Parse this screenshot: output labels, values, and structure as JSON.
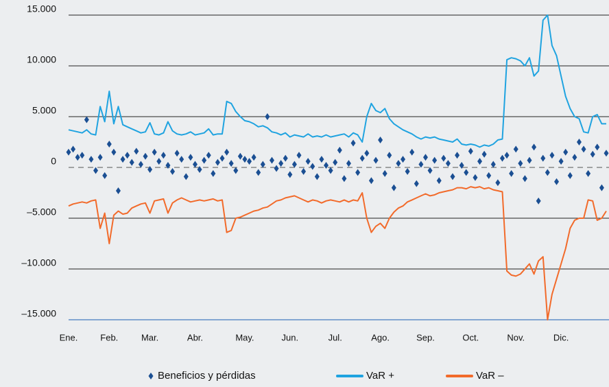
{
  "chart_data": {
    "type": "line",
    "categories": [
      "Ene.",
      null,
      null,
      null,
      null,
      null,
      null,
      null,
      null,
      "Feb.",
      null,
      null,
      null,
      null,
      null,
      null,
      null,
      null,
      "Mar.",
      null,
      null,
      null,
      null,
      null,
      null,
      null,
      null,
      null,
      "Abr.",
      null,
      null,
      null,
      null,
      null,
      null,
      null,
      null,
      null,
      null,
      "May.",
      null,
      null,
      null,
      null,
      null,
      null,
      null,
      null,
      null,
      "Jun.",
      null,
      null,
      null,
      null,
      null,
      null,
      null,
      null,
      null,
      "Jul.",
      null,
      null,
      null,
      null,
      null,
      null,
      null,
      null,
      null,
      "Ago.",
      null,
      null,
      null,
      null,
      null,
      null,
      null,
      null,
      null,
      "Sep.",
      null,
      null,
      null,
      null,
      null,
      null,
      null,
      null,
      null,
      "Oct.",
      null,
      null,
      null,
      null,
      null,
      null,
      null,
      null,
      null,
      "Nov.",
      null,
      null,
      null,
      null,
      null,
      null,
      null,
      null,
      null,
      "Dic.",
      null,
      null,
      null,
      null,
      null,
      null,
      null,
      null,
      null,
      null
    ],
    "series": [
      {
        "name": "Beneficios y pérdidas",
        "color": "#1b4f93",
        "mode": "markers",
        "values": [
          1500,
          1800,
          1000,
          1200,
          4700,
          800,
          -300,
          1000,
          -800,
          2300,
          1500,
          -2300,
          800,
          1200,
          500,
          1600,
          300,
          1100,
          -200,
          1500,
          600,
          1200,
          200,
          -400,
          1400,
          800,
          -900,
          1000,
          300,
          -200,
          700,
          1200,
          -600,
          500,
          900,
          1500,
          400,
          -300,
          1100,
          800,
          600,
          1000,
          -500,
          300,
          5000,
          700,
          -100,
          400,
          900,
          -700,
          300,
          1200,
          -400,
          600,
          100,
          -900,
          800,
          200,
          -300,
          500,
          1700,
          -1100,
          400,
          2400,
          -500,
          900,
          1400,
          -1300,
          700,
          2700,
          -600,
          1200,
          -2000,
          400,
          800,
          -400,
          1500,
          -1600,
          300,
          1000,
          -300,
          700,
          -1300,
          900,
          400,
          -900,
          1200,
          200,
          -500,
          1600,
          -1000,
          600,
          1300,
          -800,
          300,
          -1500,
          900,
          1200,
          -600,
          1800,
          400,
          -1100,
          700,
          2000,
          -3300,
          900,
          -500,
          1200,
          -1400,
          600,
          1500,
          -800,
          1000,
          2500,
          1800,
          -600,
          1300,
          2000,
          -2000,
          1400
        ]
      },
      {
        "name": "VaR +",
        "color": "#1fa3e0",
        "mode": "line",
        "values": [
          3700,
          3600,
          3500,
          3400,
          3700,
          3300,
          3200,
          6000,
          4500,
          7500,
          4300,
          6000,
          4200,
          4000,
          3800,
          3600,
          3400,
          3500,
          4400,
          3300,
          3200,
          3400,
          4500,
          3600,
          3300,
          3200,
          3300,
          3500,
          3200,
          3300,
          3400,
          3800,
          3200,
          3300,
          3300,
          6500,
          6300,
          5500,
          5000,
          4600,
          4500,
          4300,
          4000,
          4100,
          3900,
          3500,
          3400,
          3200,
          3400,
          3000,
          3200,
          3100,
          3000,
          3300,
          3000,
          3100,
          3000,
          3200,
          3000,
          3100,
          3200,
          3300,
          3000,
          3400,
          3200,
          2500,
          5000,
          6300,
          5600,
          5400,
          5800,
          4800,
          4300,
          4000,
          3700,
          3500,
          3300,
          3000,
          2800,
          3000,
          2900,
          3000,
          2800,
          2700,
          2600,
          2500,
          2800,
          2300,
          2200,
          2300,
          2200,
          2000,
          2200,
          2100,
          2300,
          2700,
          2800,
          10600,
          10800,
          10700,
          10500,
          10000,
          10800,
          9000,
          9500,
          14500,
          15000,
          12000,
          11000,
          9000,
          7000,
          5800,
          5000,
          4800,
          3500,
          3400,
          5000,
          5200,
          4300,
          4300
        ]
      },
      {
        "name": "VaR –",
        "color": "#f26a2a",
        "mode": "line",
        "values": [
          -3800,
          -3600,
          -3500,
          -3400,
          -3500,
          -3300,
          -3200,
          -6000,
          -4500,
          -7500,
          -4700,
          -4300,
          -4600,
          -4500,
          -4000,
          -3800,
          -3600,
          -3500,
          -4500,
          -3300,
          -3200,
          -3100,
          -4500,
          -3500,
          -3200,
          -3000,
          -3200,
          -3400,
          -3300,
          -3200,
          -3300,
          -3200,
          -3100,
          -3300,
          -3200,
          -6400,
          -6200,
          -5000,
          -4900,
          -4700,
          -4500,
          -4300,
          -4200,
          -4000,
          -3900,
          -3600,
          -3300,
          -3200,
          -3000,
          -2900,
          -2800,
          -3000,
          -3200,
          -3400,
          -3200,
          -3300,
          -3500,
          -3300,
          -3200,
          -3300,
          -3400,
          -3200,
          -3400,
          -3200,
          -3300,
          -2500,
          -5000,
          -6400,
          -5800,
          -5500,
          -6000,
          -5000,
          -4400,
          -4000,
          -3800,
          -3400,
          -3200,
          -3000,
          -2800,
          -2600,
          -2800,
          -2700,
          -2500,
          -2400,
          -2300,
          -2200,
          -2000,
          -2000,
          -2100,
          -1900,
          -2000,
          -1900,
          -2100,
          -2000,
          -2200,
          -2300,
          -2400,
          -10200,
          -10600,
          -10700,
          -10500,
          -10000,
          -9500,
          -10500,
          -9200,
          -8800,
          -15000,
          -12500,
          -11000,
          -9500,
          -8000,
          -6000,
          -5200,
          -5000,
          -5000,
          -3200,
          -3300,
          -5200,
          -5000,
          -4300
        ]
      }
    ],
    "ylim": [
      -15000,
      15000
    ],
    "yticks": [
      {
        "value": -15000,
        "label": "–15.000"
      },
      {
        "value": -10000,
        "label": "–10.000"
      },
      {
        "value": -5000,
        "label": "–5.000"
      },
      0,
      {
        "value": 5000,
        "label": "5.000"
      },
      {
        "value": 10000,
        "label": "10.000"
      },
      {
        "value": 15000,
        "label": "15.000"
      }
    ],
    "grid": true,
    "legend": "bottom"
  }
}
